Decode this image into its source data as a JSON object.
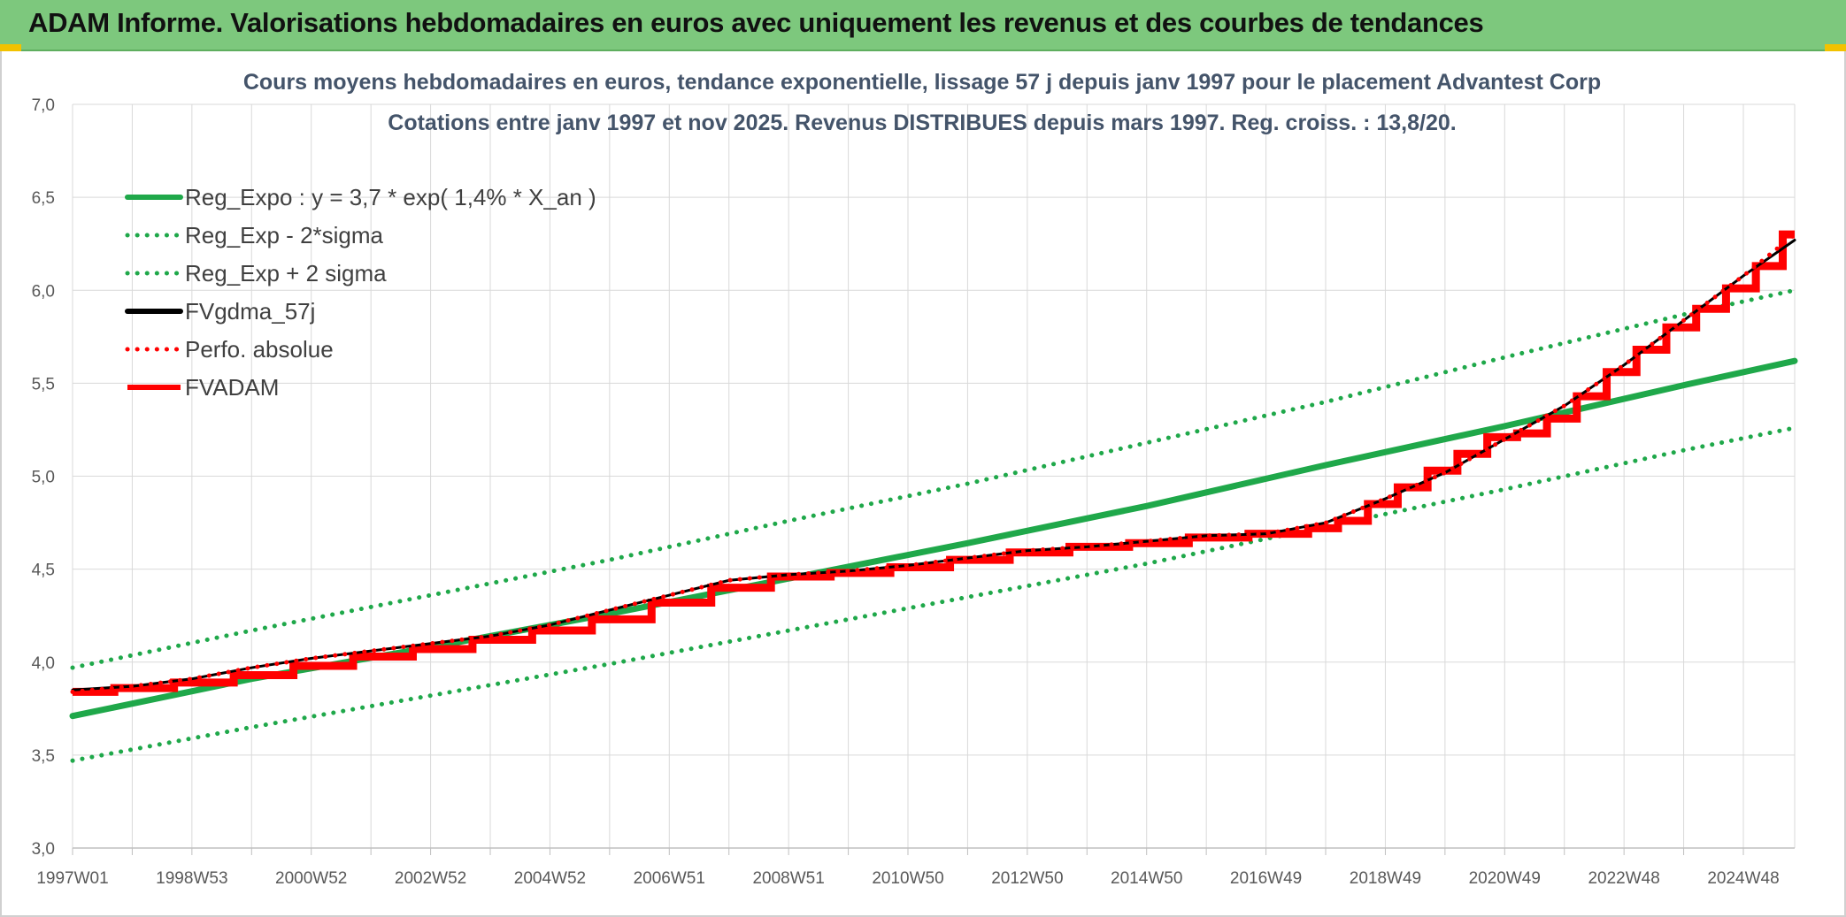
{
  "banner": {
    "title": "ADAM Informe. Valorisations hebdomadaires en euros avec uniquement les revenus et des courbes de tendances"
  },
  "colors": {
    "banner_bg": "#7dc87d",
    "trend_green": "#1fa84a",
    "series_red": "#ff0000",
    "series_black": "#000000",
    "grid": "#d9d9d9"
  },
  "chart_data": {
    "type": "line",
    "title_line1": "Cours moyens hebdomadaires en euros, tendance exponentielle, lissage 57 j depuis janv 1997 pour le placement Advantest Corp",
    "title_line2": "Cotations entre janv 1997 et nov 2025. Revenus DISTRIBUES depuis mars 1997. Reg. croiss. : 13,8/20.",
    "xlabel": "",
    "ylabel": "",
    "ylim": [
      3.0,
      7.0
    ],
    "yticks": [
      "3,0",
      "3,5",
      "4,0",
      "4,5",
      "5,0",
      "5,5",
      "6,0",
      "6,5",
      "7,0"
    ],
    "xlim": [
      1997.0,
      2025.85
    ],
    "xticks": [
      "1997W01",
      "1998W53",
      "2000W52",
      "2002W52",
      "2004W52",
      "2006W51",
      "2008W51",
      "2010W50",
      "2012W50",
      "2014W50",
      "2016W49",
      "2018W49",
      "2020W49",
      "2022W48",
      "2024W48"
    ],
    "grid": true,
    "legend_position": "top-left",
    "series": [
      {
        "name": "Reg_Expo : y = 3,7 * exp( 1,4% *  X_an )",
        "style": "solid",
        "color": "#1fa84a",
        "x": [
          1997.0,
          2000.0,
          2003.0,
          2006.0,
          2009.0,
          2012.0,
          2015.0,
          2018.0,
          2021.0,
          2024.0,
          2025.85
        ],
        "values": [
          3.71,
          3.91,
          4.08,
          4.26,
          4.45,
          4.64,
          4.84,
          5.06,
          5.27,
          5.49,
          5.62
        ]
      },
      {
        "name": "Reg_Exp - 2*sigma",
        "style": "dotted",
        "color": "#1fa84a",
        "x": [
          1997.0,
          2000.0,
          2003.0,
          2006.0,
          2009.0,
          2012.0,
          2015.0,
          2018.0,
          2021.0,
          2024.0,
          2025.85
        ],
        "values": [
          3.47,
          3.65,
          3.82,
          3.99,
          4.17,
          4.35,
          4.53,
          4.73,
          4.93,
          5.14,
          5.26
        ]
      },
      {
        "name": "Reg_Exp + 2 sigma",
        "style": "dotted",
        "color": "#1fa84a",
        "x": [
          1997.0,
          2000.0,
          2003.0,
          2006.0,
          2009.0,
          2012.0,
          2015.0,
          2018.0,
          2021.0,
          2024.0,
          2025.85
        ],
        "values": [
          3.97,
          4.17,
          4.36,
          4.55,
          4.76,
          4.96,
          5.18,
          5.4,
          5.64,
          5.87,
          6.0
        ]
      },
      {
        "name": "FVgdma_57j",
        "style": "solid",
        "color": "#000000",
        "x": [
          1997.0,
          1998.0,
          1999.0,
          2000.0,
          2001.0,
          2002.0,
          2003.0,
          2004.0,
          2005.0,
          2006.0,
          2007.0,
          2008.0,
          2009.0,
          2010.0,
          2011.0,
          2012.0,
          2013.0,
          2014.0,
          2015.0,
          2016.0,
          2017.0,
          2018.0,
          2019.0,
          2020.0,
          2021.0,
          2022.0,
          2023.0,
          2024.0,
          2025.0,
          2025.85
        ],
        "values": [
          3.85,
          3.87,
          3.91,
          3.97,
          4.02,
          4.06,
          4.1,
          4.14,
          4.2,
          4.28,
          4.36,
          4.44,
          4.47,
          4.49,
          4.52,
          4.56,
          4.6,
          4.62,
          4.65,
          4.68,
          4.69,
          4.75,
          4.88,
          5.02,
          5.2,
          5.38,
          5.6,
          5.84,
          6.08,
          6.27
        ]
      },
      {
        "name": "Perfo. absolue",
        "style": "dotted",
        "color": "#ff0000",
        "x": [
          1997.0,
          1998.0,
          1999.0,
          2000.0,
          2001.0,
          2002.0,
          2003.0,
          2004.0,
          2005.0,
          2006.0,
          2007.0,
          2008.0,
          2009.0,
          2010.0,
          2011.0,
          2012.0,
          2013.0,
          2014.0,
          2015.0,
          2016.0,
          2017.0,
          2018.0,
          2019.0,
          2020.0,
          2021.0,
          2022.0,
          2023.0,
          2024.0,
          2025.0,
          2025.85
        ],
        "values": [
          3.84,
          3.87,
          3.91,
          3.97,
          4.02,
          4.06,
          4.1,
          4.14,
          4.2,
          4.28,
          4.36,
          4.44,
          4.47,
          4.49,
          4.52,
          4.56,
          4.6,
          4.62,
          4.65,
          4.68,
          4.69,
          4.75,
          4.88,
          5.02,
          5.2,
          5.38,
          5.6,
          5.84,
          6.08,
          6.3
        ]
      },
      {
        "name": "FVADAM",
        "style": "step",
        "color": "#ff0000",
        "x": [
          1997.0,
          1997.7,
          1998.7,
          1999.7,
          2000.7,
          2001.7,
          2002.7,
          2003.7,
          2004.7,
          2005.7,
          2006.7,
          2007.7,
          2008.7,
          2009.7,
          2010.7,
          2011.7,
          2012.7,
          2013.7,
          2014.7,
          2015.7,
          2016.7,
          2017.7,
          2018.2,
          2018.7,
          2019.2,
          2019.7,
          2020.2,
          2020.7,
          2021.2,
          2021.7,
          2022.2,
          2022.7,
          2023.2,
          2023.7,
          2024.2,
          2024.7,
          2025.2,
          2025.65,
          2025.85
        ],
        "values": [
          3.84,
          3.86,
          3.89,
          3.93,
          3.98,
          4.03,
          4.07,
          4.12,
          4.17,
          4.23,
          4.32,
          4.4,
          4.46,
          4.48,
          4.51,
          4.55,
          4.59,
          4.62,
          4.64,
          4.67,
          4.69,
          4.72,
          4.76,
          4.85,
          4.94,
          5.03,
          5.12,
          5.21,
          5.23,
          5.31,
          5.43,
          5.56,
          5.68,
          5.8,
          5.9,
          6.01,
          6.13,
          6.3,
          6.3
        ]
      }
    ]
  }
}
